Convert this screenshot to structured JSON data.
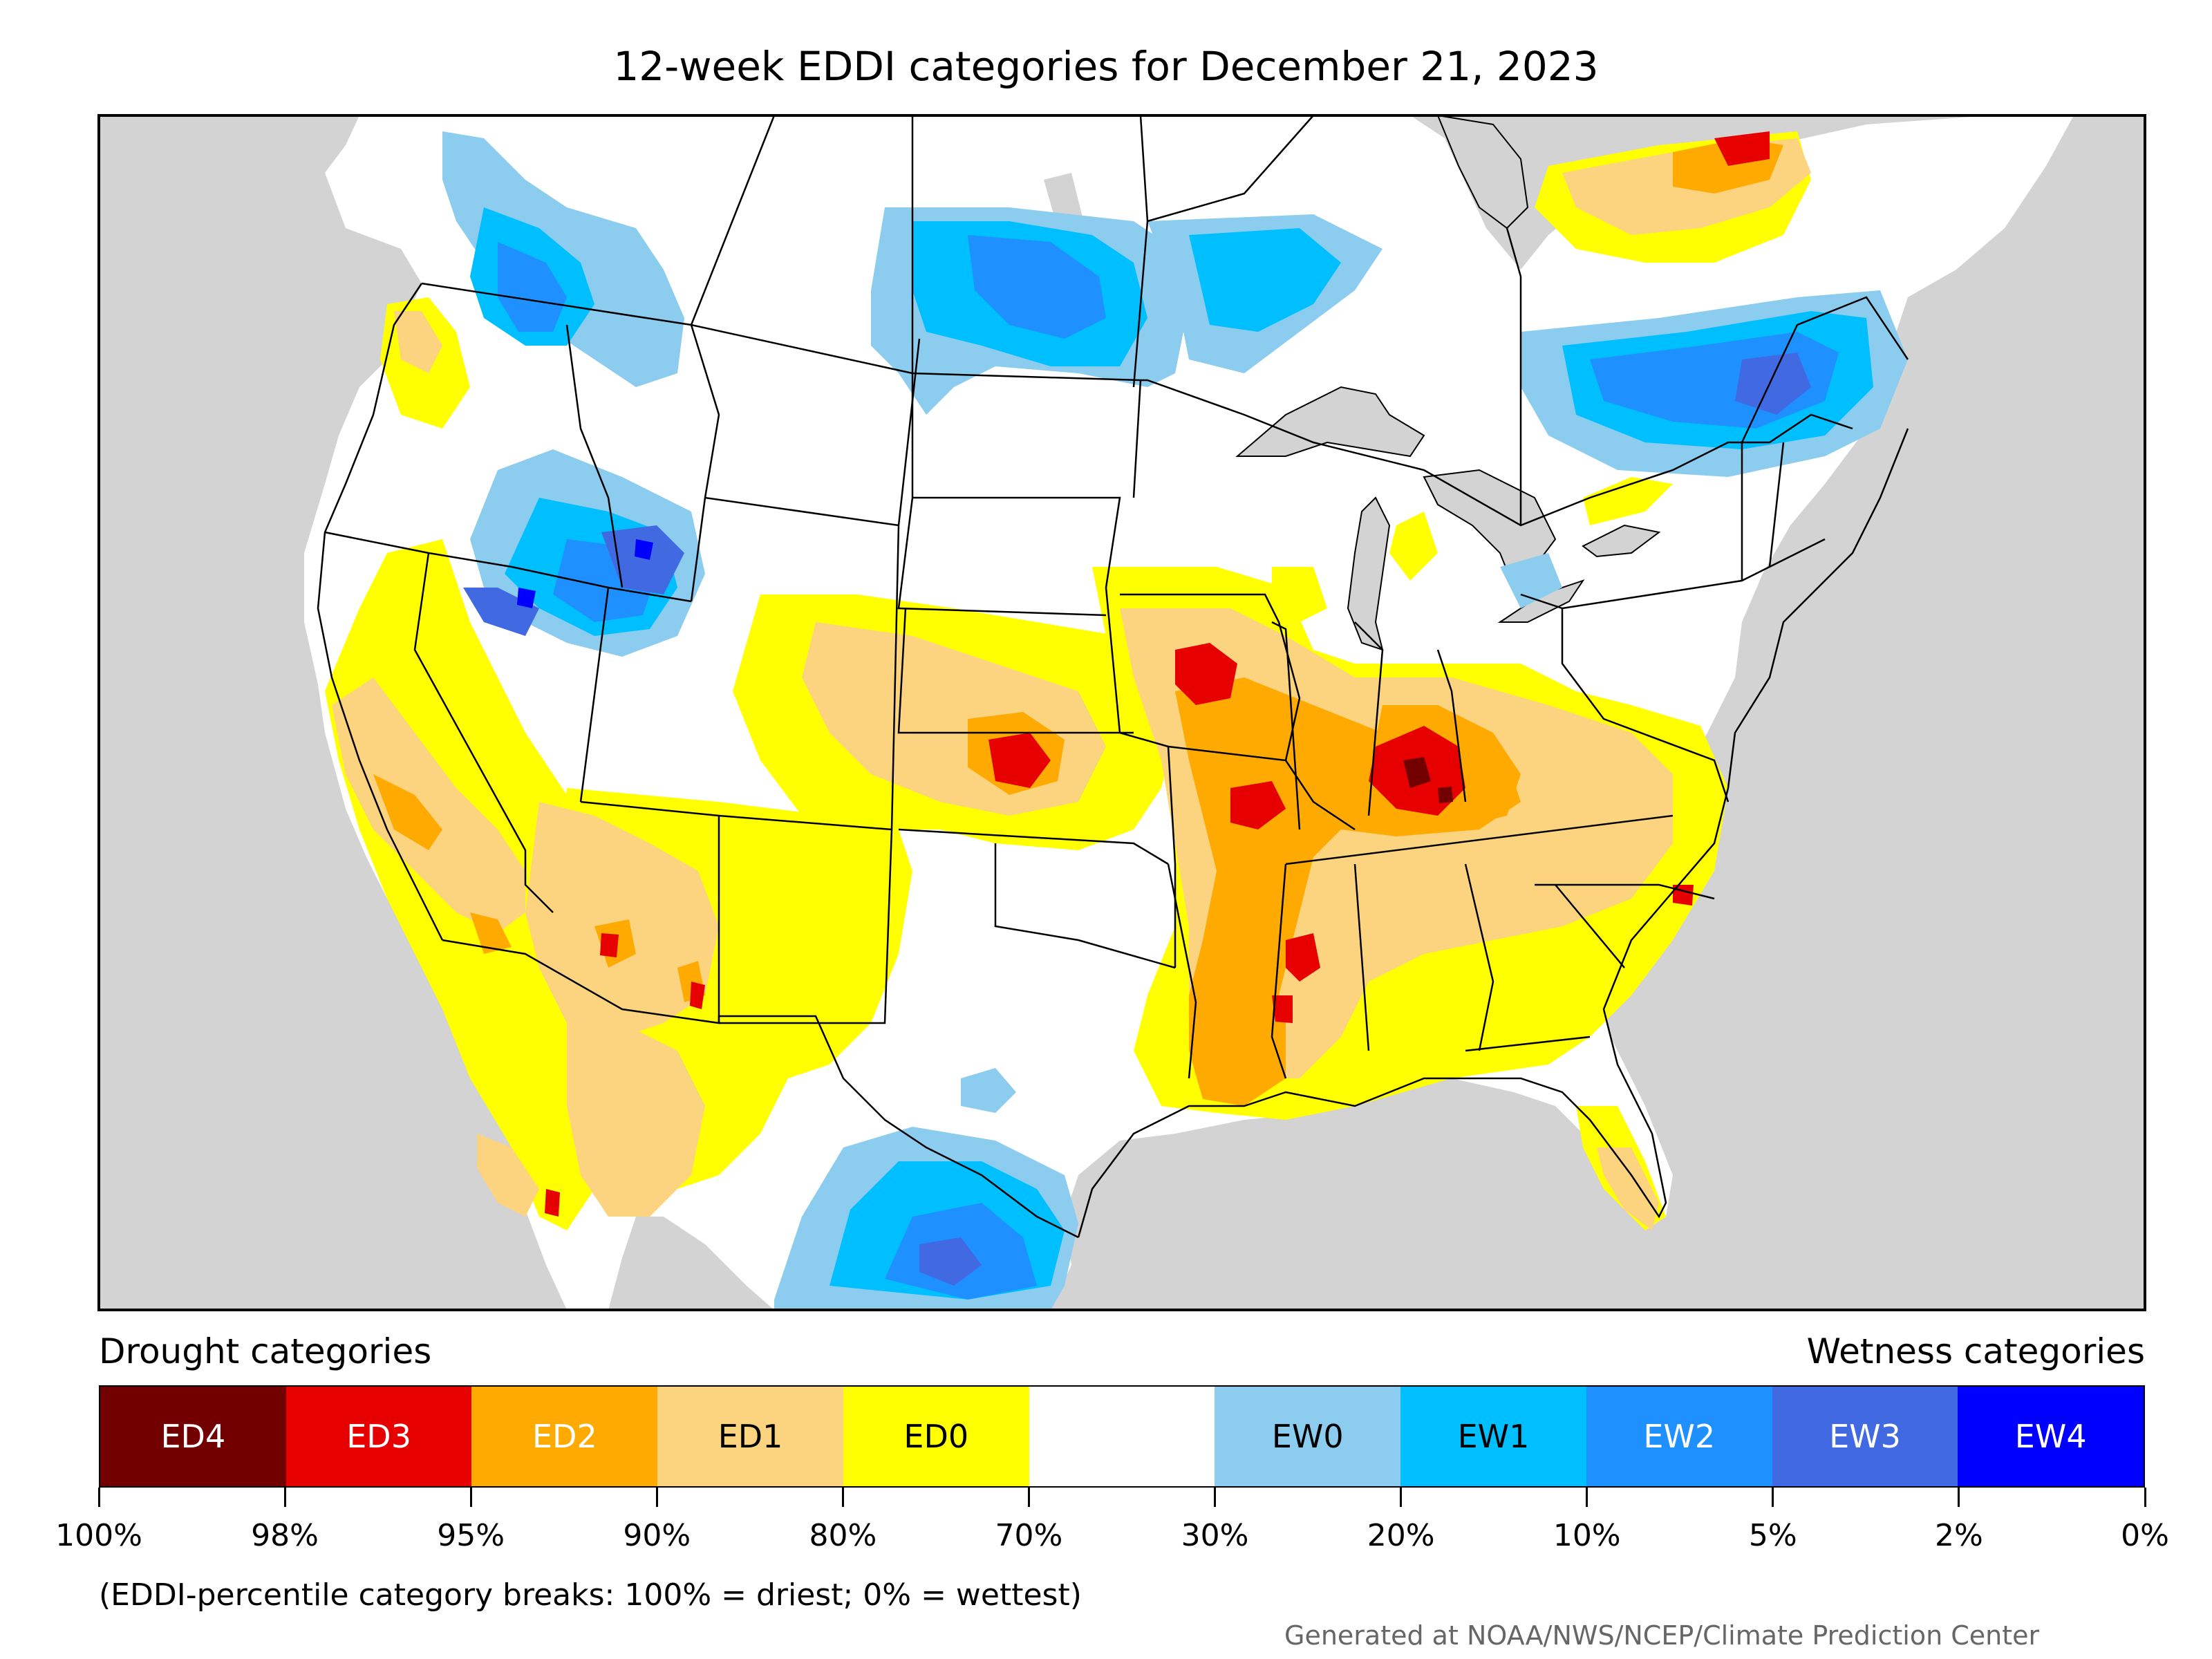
{
  "title": "12-week EDDI categories for December 21, 2023",
  "colors": {
    "land": "#ffffff",
    "ocean": "#d3d3d3",
    "border": "#000000",
    "ED4": "#730000",
    "ED3": "#e60000",
    "ED2": "#ffaa00",
    "ED1": "#fcd37f",
    "ED0": "#ffff00",
    "neutral": "#ffffff",
    "EW0": "#8ccdef",
    "EW1": "#00bfff",
    "EW2": "#1e90ff",
    "EW3": "#4169e1",
    "EW4": "#0000ff"
  },
  "legend": {
    "drought_heading": "Drought categories",
    "wetness_heading": "Wetness categories",
    "categories": [
      {
        "label": "ED4",
        "color": "#730000",
        "text_color": "#ffffff"
      },
      {
        "label": "ED3",
        "color": "#e60000",
        "text_color": "#ffffff"
      },
      {
        "label": "ED2",
        "color": "#ffaa00",
        "text_color": "#ffffff"
      },
      {
        "label": "ED1",
        "color": "#fcd37f",
        "text_color": "#000000"
      },
      {
        "label": "ED0",
        "color": "#ffff00",
        "text_color": "#000000"
      },
      {
        "label": "",
        "color": "#ffffff",
        "text_color": "#000000"
      },
      {
        "label": "EW0",
        "color": "#8ccdef",
        "text_color": "#000000"
      },
      {
        "label": "EW1",
        "color": "#00bfff",
        "text_color": "#000000"
      },
      {
        "label": "EW2",
        "color": "#1e90ff",
        "text_color": "#ffffff"
      },
      {
        "label": "EW3",
        "color": "#4169e1",
        "text_color": "#ffffff"
      },
      {
        "label": "EW4",
        "color": "#0000ff",
        "text_color": "#ffffff"
      }
    ],
    "breaks": [
      "100%",
      "98%",
      "95%",
      "90%",
      "80%",
      "70%",
      "30%",
      "20%",
      "10%",
      "5%",
      "2%",
      "0%"
    ]
  },
  "note": "(EDDI-percentile category breaks: 100% = driest; 0% = wettest)",
  "credit": "Generated at NOAA/NWS/NCEP/Climate Prediction Center"
}
